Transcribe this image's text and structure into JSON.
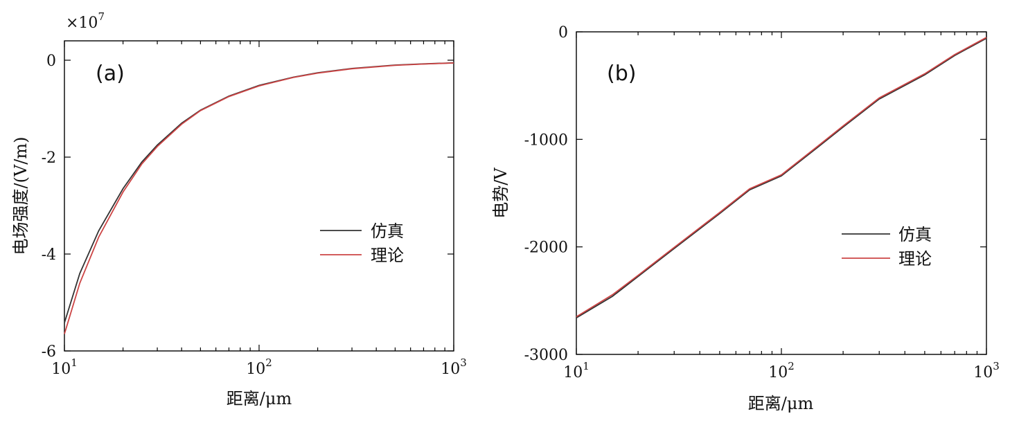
{
  "chart_data": [
    {
      "type": "line",
      "panel_label": "(a)",
      "xlabel": "距离/μm",
      "ylabel": "电场强度/(V/m)",
      "y_multiplier": "×10",
      "y_multiplier_exp": "7",
      "x_scale": "log",
      "xlim": [
        10,
        1000
      ],
      "ylim": [
        -6,
        0.4
      ],
      "xticks": [
        {
          "value": 10,
          "base": "10",
          "exp": "1"
        },
        {
          "value": 100,
          "base": "10",
          "exp": "2"
        },
        {
          "value": 1000,
          "base": "10",
          "exp": "3"
        }
      ],
      "yticks": [
        {
          "value": 0,
          "label": "0"
        },
        {
          "value": -2,
          "label": "-2"
        },
        {
          "value": -4,
          "label": "-4"
        },
        {
          "value": -6,
          "label": "-6"
        }
      ],
      "legend_position": "center-right",
      "series": [
        {
          "name": "仿真",
          "color": "#333333",
          "x": [
            10,
            12,
            15,
            20,
            25,
            30,
            40,
            50,
            70,
            100,
            150,
            200,
            300,
            500,
            700,
            1000
          ],
          "y": [
            -5.42,
            -4.4,
            -3.52,
            -2.65,
            -2.1,
            -1.75,
            -1.3,
            -1.03,
            -0.74,
            -0.52,
            -0.35,
            -0.26,
            -0.17,
            -0.1,
            -0.075,
            -0.055
          ]
        },
        {
          "name": "理论",
          "color": "#cc4444",
          "x": [
            10,
            12,
            15,
            20,
            25,
            30,
            40,
            50,
            70,
            100,
            150,
            200,
            300,
            500,
            700,
            1000
          ],
          "y": [
            -5.65,
            -4.6,
            -3.65,
            -2.72,
            -2.14,
            -1.78,
            -1.32,
            -1.04,
            -0.75,
            -0.53,
            -0.355,
            -0.265,
            -0.175,
            -0.105,
            -0.078,
            -0.057
          ]
        }
      ]
    },
    {
      "type": "line",
      "panel_label": "(b)",
      "xlabel": "距离/μm",
      "ylabel": "电势/V",
      "x_scale": "log",
      "xlim": [
        10,
        1000
      ],
      "ylim": [
        -3000,
        0
      ],
      "xticks": [
        {
          "value": 10,
          "base": "10",
          "exp": "1"
        },
        {
          "value": 100,
          "base": "10",
          "exp": "2"
        },
        {
          "value": 1000,
          "base": "10",
          "exp": "3"
        }
      ],
      "yticks": [
        {
          "value": 0,
          "label": "0"
        },
        {
          "value": -1000,
          "label": "-1000"
        },
        {
          "value": -2000,
          "label": "-2000"
        },
        {
          "value": -3000,
          "label": "-3000"
        }
      ],
      "legend_position": "bottom-right",
      "series": [
        {
          "name": "仿真",
          "color": "#333333",
          "x": [
            10,
            15,
            20,
            30,
            50,
            70,
            100,
            150,
            200,
            300,
            500,
            700,
            1000
          ],
          "y": [
            -2660,
            -2460,
            -2275,
            -2015,
            -1690,
            -1470,
            -1340,
            -1075,
            -885,
            -625,
            -400,
            -220,
            -60
          ]
        },
        {
          "name": "理论",
          "color": "#cc4444",
          "x": [
            10,
            15,
            20,
            30,
            50,
            70,
            100,
            150,
            200,
            300,
            500,
            700,
            1000
          ],
          "y": [
            -2650,
            -2445,
            -2265,
            -2005,
            -1680,
            -1460,
            -1330,
            -1065,
            -875,
            -615,
            -390,
            -212,
            -52
          ]
        }
      ]
    }
  ]
}
